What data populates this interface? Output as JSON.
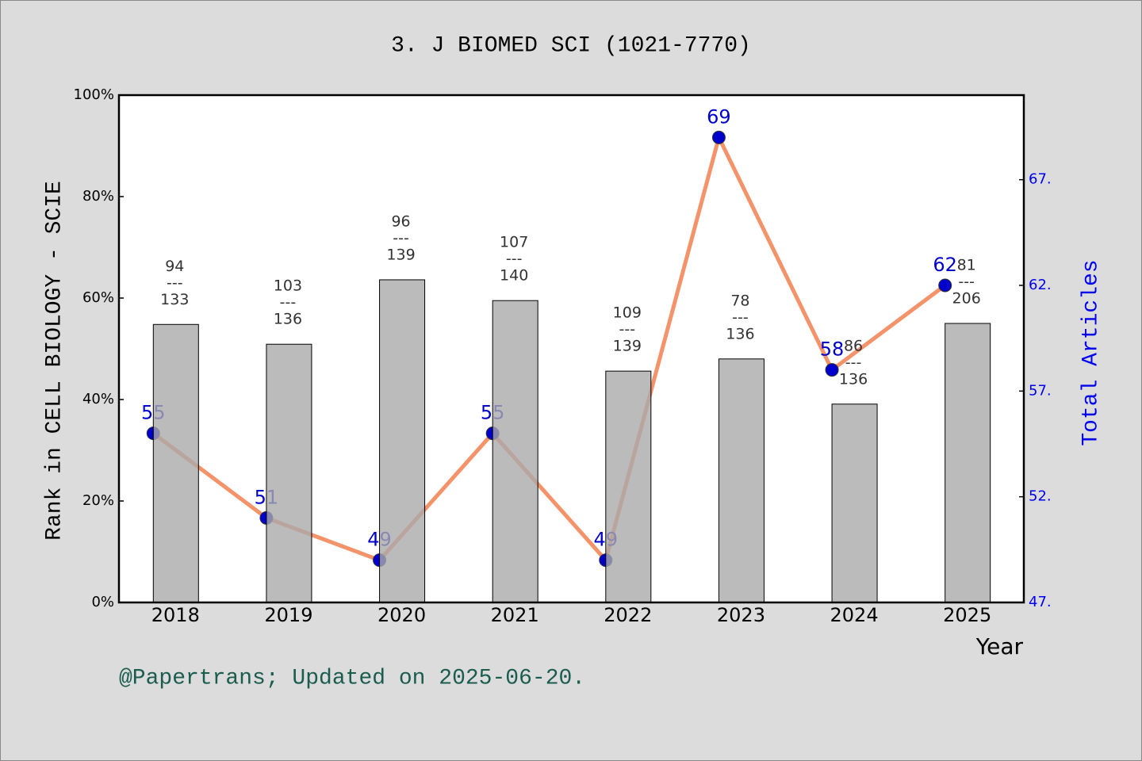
{
  "chart_data": {
    "type": "bar",
    "title": "3. J BIOMED SCI (1021-7770)",
    "y_label": "Rank in CELL BIOLOGY - SCIE",
    "y2_label": "Total Articles",
    "x_label": "Year",
    "footer": "@Papertrans; Updated on 2025-06-20.",
    "categories": [
      "2018",
      "2019",
      "2020",
      "2021",
      "2022",
      "2023",
      "2024",
      "2025"
    ],
    "series": [
      {
        "type": "bar",
        "color": "#aaaaab",
        "values": [
          54.8,
          50.9,
          63.6,
          59.5,
          45.6,
          48.0,
          39.1,
          55.0
        ]
      },
      {
        "type": "line",
        "axis": "y2",
        "color": "#f4936a",
        "marker_color": "#0000cc",
        "values": [
          55,
          51,
          49,
          55,
          49,
          69,
          58,
          62
        ]
      }
    ],
    "rank_labels": {
      "ranks": [
        94,
        103,
        96,
        107,
        109,
        78,
        86,
        81
      ],
      "totals": [
        133,
        136,
        139,
        140,
        139,
        136,
        136,
        206
      ],
      "separator": "---"
    },
    "ylim": [
      0,
      100
    ],
    "yticks": [
      {
        "value": 0,
        "label": "0%"
      },
      {
        "value": 20,
        "label": "20%"
      },
      {
        "value": 40,
        "label": "40%"
      },
      {
        "value": 60,
        "label": "60%"
      },
      {
        "value": 80,
        "label": "80%"
      },
      {
        "value": 100,
        "label": "100%"
      }
    ],
    "y2lim": [
      47,
      71
    ],
    "y2ticks": [
      {
        "value": 47,
        "label": "47."
      },
      {
        "value": 52,
        "label": "52."
      },
      {
        "value": 57,
        "label": "57."
      },
      {
        "value": 62,
        "label": "62."
      },
      {
        "value": 67,
        "label": "67."
      }
    ],
    "y2_color": "#0000ee",
    "grid": false
  }
}
